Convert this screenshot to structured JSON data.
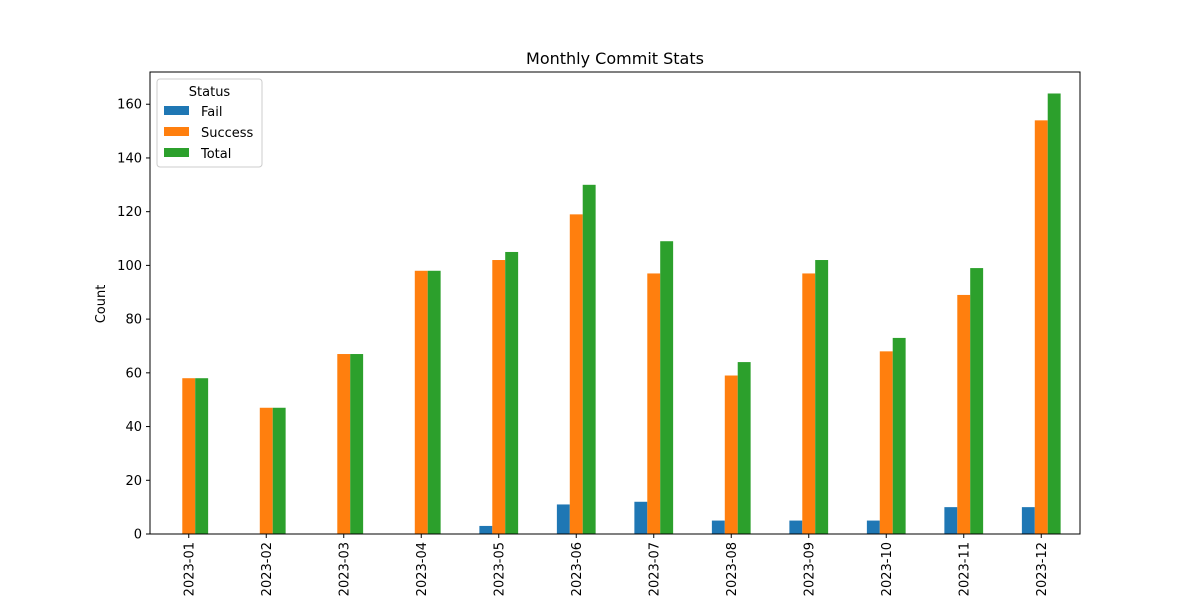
{
  "chart_data": {
    "type": "bar",
    "title": "Monthly Commit Stats",
    "xlabel": "",
    "ylabel": "Count",
    "categories": [
      "2023-01",
      "2023-02",
      "2023-03",
      "2023-04",
      "2023-05",
      "2023-06",
      "2023-07",
      "2023-08",
      "2023-09",
      "2023-10",
      "2023-11",
      "2023-12"
    ],
    "series": [
      {
        "name": "Fail",
        "color": "#1f77b4",
        "values": [
          0,
          0,
          0,
          0,
          3,
          11,
          12,
          5,
          5,
          5,
          10,
          10
        ]
      },
      {
        "name": "Success",
        "color": "#ff7f0e",
        "values": [
          58,
          47,
          67,
          98,
          102,
          119,
          97,
          59,
          97,
          68,
          89,
          154
        ]
      },
      {
        "name": "Total",
        "color": "#2ca02c",
        "values": [
          58,
          47,
          67,
          98,
          105,
          130,
          109,
          64,
          102,
          73,
          99,
          164
        ]
      }
    ],
    "ylim": [
      0,
      172
    ],
    "yticks": [
      0,
      20,
      40,
      60,
      80,
      100,
      120,
      140,
      160
    ],
    "legend": {
      "title": "Status",
      "placement": "top-left"
    },
    "grid": false
  }
}
